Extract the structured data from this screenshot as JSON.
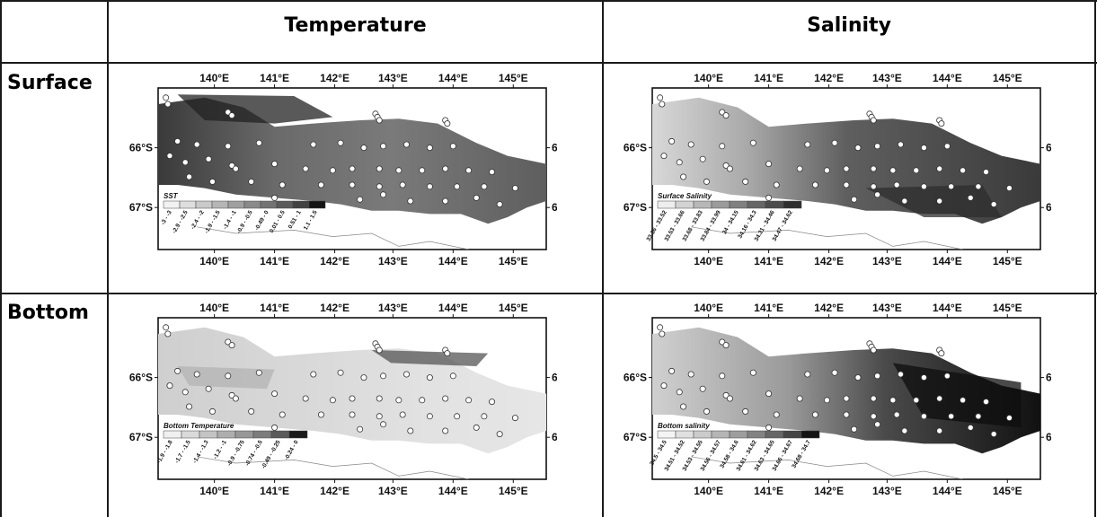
{
  "table": {
    "col_headers": [
      "Temperature",
      "Salinity"
    ],
    "row_headers": [
      "Surface",
      "Bottom"
    ]
  },
  "axes": {
    "lon_ticks": [
      "140°E",
      "141°E",
      "142°E",
      "143°E",
      "144°E",
      "145°E"
    ],
    "lat_ticks": [
      "66°S",
      "67°S"
    ]
  },
  "panels": [
    {
      "id": "surface-temperature",
      "legend_title": "SST",
      "legend_labels": [
        "-3 - -3",
        "-2.9 - -2.5",
        "-2.4 - -2",
        "-1.9 - -1.5",
        "-1.4 - -1",
        "-0.9 - -0.5",
        "-0.49 - 0",
        "0.01 - 0.5",
        "0.51 - 1",
        "1.1 - 1.5"
      ],
      "legend_colors": [
        "#f2f2f2",
        "#dedede",
        "#cacaca",
        "#b5b5b5",
        "#a0a0a0",
        "#8a8a8a",
        "#737373",
        "#5b5b5b",
        "#414141",
        "#141414"
      ]
    },
    {
      "id": "surface-salinity",
      "legend_title": "Surface Salinity",
      "legend_labels": [
        "33.36 - 33.52",
        "33.53 - 33.66",
        "33.68 - 33.83",
        "33.84 - 33.99",
        "34 - 34.15",
        "34.16 - 34.3",
        "34.31 - 34.46",
        "34.47 - 34.62"
      ],
      "legend_colors": [
        "#eeeeee",
        "#d3d3d3",
        "#b7b7b7",
        "#9b9b9b",
        "#808080",
        "#666666",
        "#4c4c4c",
        "#2e2e2e"
      ]
    },
    {
      "id": "bottom-temperature",
      "legend_title": "Bottom Temperature",
      "legend_labels": [
        "-1.9 - -1.8",
        "-1.7 - -1.5",
        "-1.4 - -1.3",
        "-1.2 - -1",
        "-0.9 - -0.75",
        "-0.74 - -0.5",
        "-0.49 - -0.25",
        "-0.24 - 0"
      ],
      "legend_colors": [
        "#f0f0f0",
        "#dadada",
        "#c4c4c4",
        "#aeaeae",
        "#979797",
        "#7c7c7c",
        "#5a5a5a",
        "#1a1a1a"
      ]
    },
    {
      "id": "bottom-salinity",
      "legend_title": "Bottom salinity",
      "legend_labels": [
        "34.5 - 34.5",
        "34.51 - 34.52",
        "34.53 - 34.55",
        "34.56 - 34.57",
        "34.58 - 34.6",
        "34.61 - 34.62",
        "34.63 - 34.65",
        "34.66 - 34.67",
        "34.68 - 34.7"
      ],
      "legend_colors": [
        "#f4f4f4",
        "#e0e0e0",
        "#cbcbcb",
        "#b5b5b5",
        "#9d9d9d",
        "#838383",
        "#666666",
        "#454545",
        "#141414"
      ]
    }
  ]
}
